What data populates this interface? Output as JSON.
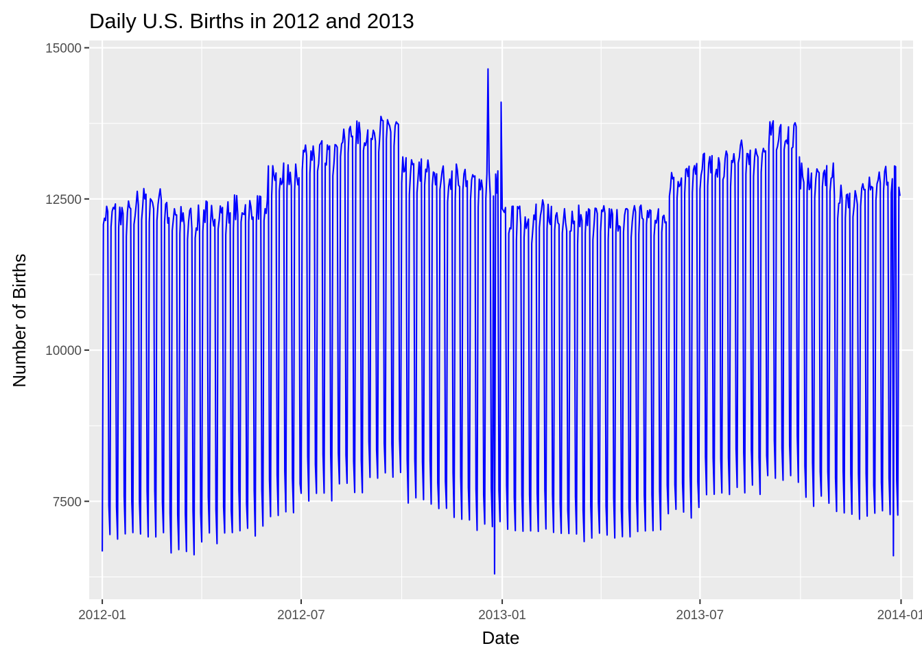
{
  "chart_data": {
    "type": "line",
    "title": "Daily U.S. Births in 2012 and 2013",
    "xlabel": "Date",
    "ylabel": "Number of Births",
    "x_ticks": [
      "2012-01",
      "2012-07",
      "2013-01",
      "2013-07",
      "2014-01"
    ],
    "y_ticks": [
      7500,
      10000,
      12500,
      15000
    ],
    "y_tick_labels": [
      "7500",
      "10000",
      "12500",
      "15000"
    ],
    "xlim": [
      "2011-12-20",
      "2014-01-12"
    ],
    "ylim": [
      5880,
      15120
    ],
    "grid": true,
    "series": [
      {
        "name": "births",
        "color": "#0000ff",
        "start_date": "2012-01-01",
        "end_date": "2013-12-31",
        "annual_level": [
          {
            "month": "2012-01",
            "weekday_mean": 12000,
            "weekend_min": 6800
          },
          {
            "month": "2012-02",
            "weekday_mean": 12200,
            "weekend_min": 6900
          },
          {
            "month": "2012-03",
            "weekday_mean": 11900,
            "weekend_min": 6600
          },
          {
            "month": "2012-04",
            "weekday_mean": 12000,
            "weekend_min": 6800
          },
          {
            "month": "2012-05",
            "weekday_mean": 12100,
            "weekend_min": 6900
          },
          {
            "month": "2012-06",
            "weekday_mean": 12600,
            "weekend_min": 7200
          },
          {
            "month": "2012-07",
            "weekday_mean": 13000,
            "weekend_min": 7500
          },
          {
            "month": "2012-08",
            "weekday_mean": 13300,
            "weekend_min": 7600
          },
          {
            "month": "2012-09",
            "weekday_mean": 13400,
            "weekend_min": 7800
          },
          {
            "month": "2012-10",
            "weekday_mean": 12700,
            "weekend_min": 7400
          },
          {
            "month": "2012-11",
            "weekday_mean": 12600,
            "weekend_min": 7200
          },
          {
            "month": "2012-12",
            "weekday_mean": 12500,
            "weekend_min": 7000
          },
          {
            "month": "2013-01",
            "weekday_mean": 11900,
            "weekend_min": 7000
          },
          {
            "month": "2013-02",
            "weekday_mean": 12000,
            "weekend_min": 6900
          },
          {
            "month": "2013-03",
            "weekday_mean": 11900,
            "weekend_min": 6800
          },
          {
            "month": "2013-04",
            "weekday_mean": 11900,
            "weekend_min": 6800
          },
          {
            "month": "2013-05",
            "weekday_mean": 12000,
            "weekend_min": 6900
          },
          {
            "month": "2013-06",
            "weekday_mean": 12600,
            "weekend_min": 7200
          },
          {
            "month": "2013-07",
            "weekday_mean": 12800,
            "weekend_min": 7500
          },
          {
            "month": "2013-08",
            "weekday_mean": 13000,
            "weekend_min": 7600
          },
          {
            "month": "2013-09",
            "weekday_mean": 13300,
            "weekend_min": 7800
          },
          {
            "month": "2013-10",
            "weekday_mean": 12600,
            "weekend_min": 7400
          },
          {
            "month": "2013-11",
            "weekday_mean": 12300,
            "weekend_min": 7200
          },
          {
            "month": "2013-12",
            "weekday_mean": 12600,
            "weekend_min": 7200
          }
        ],
        "notable_points": [
          {
            "date": "2012-01-01",
            "value": 6670
          },
          {
            "date": "2012-12-19",
            "value": 14650
          },
          {
            "date": "2012-12-25",
            "value": 6300
          },
          {
            "date": "2012-12-31",
            "value": 14100
          },
          {
            "date": "2013-09-12",
            "value": 13680
          },
          {
            "date": "2013-12-25",
            "value": 6600
          },
          {
            "date": "2013-12-31",
            "value": 12550
          }
        ]
      }
    ]
  }
}
